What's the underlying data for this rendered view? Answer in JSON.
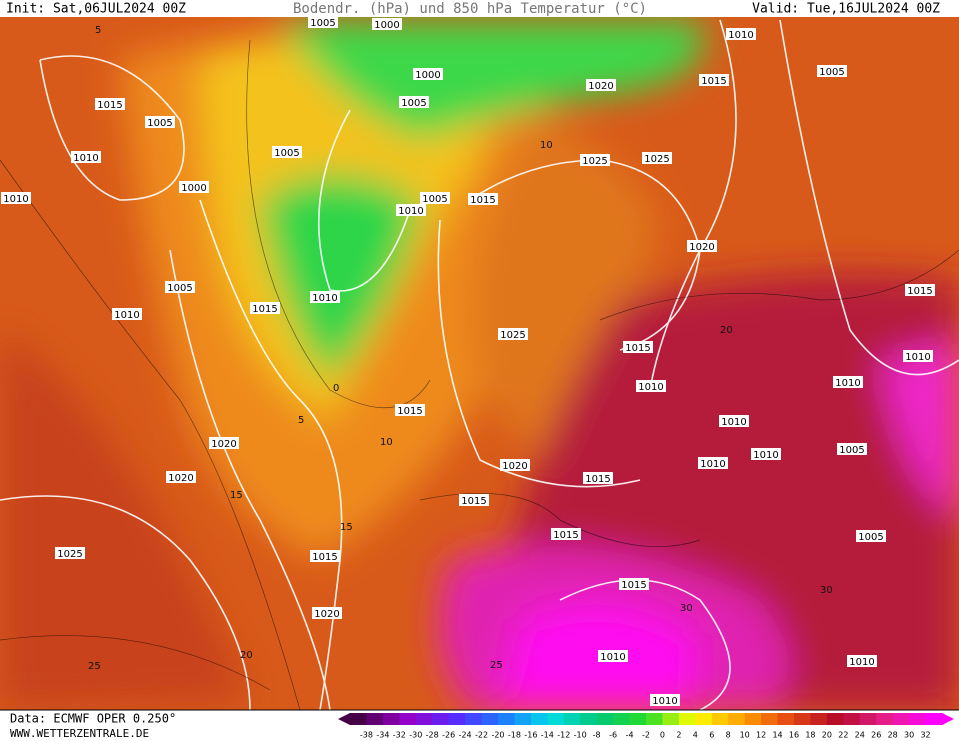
{
  "header": {
    "init": "Init: Sat,06JUL2024 00Z",
    "title": "Bodendr. (hPa) und 850 hPa Temperatur (°C)",
    "valid": "Valid: Tue,16JUL2024 00Z"
  },
  "isobar_labels": [
    "1005",
    "1000",
    "1000",
    "1005",
    "1015",
    "1005",
    "1010",
    "1005",
    "1000",
    "1010",
    "1005",
    "1010",
    "1015",
    "1010",
    "1005",
    "1010",
    "1015",
    "1025",
    "1025",
    "1020",
    "1015",
    "1010",
    "1005",
    "1020",
    "1025",
    "1015",
    "1015",
    "1010",
    "1010",
    "1010",
    "1010",
    "1010",
    "1010",
    "1005",
    "1015",
    "1020",
    "1020",
    "1020",
    "1015",
    "1015",
    "1015",
    "1015",
    "1005",
    "1025",
    "1020",
    "1015",
    "1010",
    "1010",
    "1010"
  ],
  "isotherm_labels": [
    "5",
    "10",
    "15",
    "20",
    "25",
    "30",
    "0",
    "5",
    "10",
    "15",
    "20",
    "25",
    "30"
  ],
  "footer": {
    "source": "Data: ECMWF OPER 0.250°",
    "website": "WWW.WETTERZENTRALE.DE"
  },
  "colorbar": {
    "labels": [
      -38,
      -34,
      -32,
      -30,
      -28,
      -26,
      -24,
      -22,
      -20,
      -18,
      -16,
      -14,
      -12,
      -10,
      -8,
      -6,
      -4,
      -2,
      0,
      2,
      4,
      6,
      8,
      10,
      12,
      14,
      16,
      18,
      20,
      22,
      24,
      26,
      28,
      30,
      32
    ]
  }
}
